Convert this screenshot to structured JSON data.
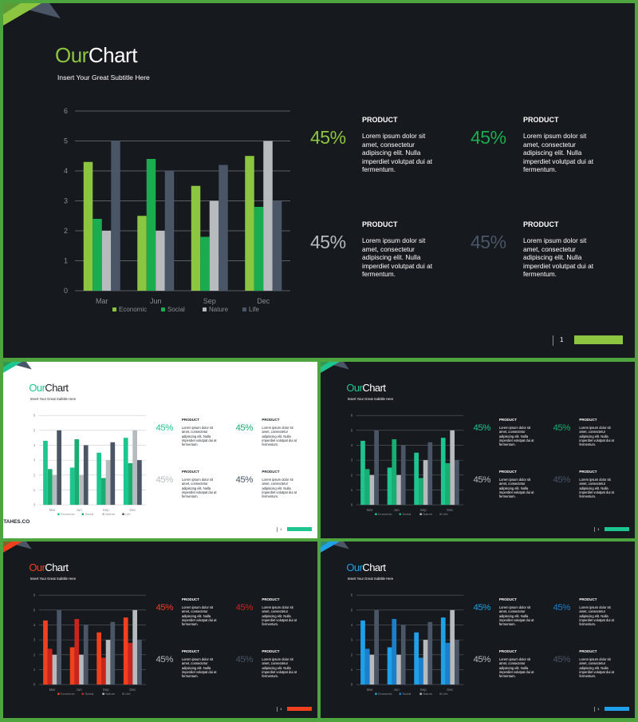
{
  "slide_text": {
    "title_part1": "Our",
    "title_part2": "Chart",
    "subtitle": "Insert Your Great Subtitle Here",
    "product_title": "PRODUCT",
    "product_description": "Lorem ipsum dolor sit amet, consectetur adipiscing elit. Nulla imperdiet volutpat dui at fermentum.",
    "percent_label": "45%",
    "page_number": "1"
  },
  "brand_label": "TAHES.CO",
  "chart_data": {
    "type": "bar",
    "categories": [
      "Mar",
      "Jun",
      "Sep",
      "Dec"
    ],
    "series": [
      {
        "name": "Economic",
        "values": [
          4.3,
          2.5,
          3.5,
          4.5
        ]
      },
      {
        "name": "Social",
        "values": [
          2.4,
          4.4,
          1.8,
          2.8
        ]
      },
      {
        "name": "Nature",
        "values": [
          2.0,
          2.0,
          3.0,
          5.0
        ]
      },
      {
        "name": "Life",
        "values": [
          5.0,
          4.0,
          4.2,
          3.0
        ]
      }
    ],
    "ylim": [
      0,
      6
    ],
    "yticks": [
      0,
      1,
      2,
      3,
      4,
      5,
      6
    ],
    "grid": true,
    "legend": "bottom"
  },
  "slides": [
    {
      "variant": "dark-green",
      "background": "#16191d",
      "accent": "#8cc540",
      "series_colors": [
        "#8cc540",
        "#19ad4f",
        "#b7bbbe",
        "#4a5566"
      ],
      "percent_colors": [
        "#8cc540",
        "#19ad4f",
        "#b7bbbe",
        "#4a5566"
      ],
      "text_color": "#ffffff",
      "axis_color": "#8a8f95",
      "grid_color": "#5a5f66",
      "show_brand": false
    },
    {
      "variant": "light-teal",
      "background": "#ffffff",
      "accent": "#1dc68e",
      "series_colors": [
        "#1dc68e",
        "#19ad72",
        "#b7bbbe",
        "#4a5566"
      ],
      "percent_colors": [
        "#1dc68e",
        "#19ad72",
        "#b7bbbe",
        "#4a5566"
      ],
      "text_color": "#1f2328",
      "axis_color": "#8a8f95",
      "grid_color": "#c9ccd0",
      "show_brand": true
    },
    {
      "variant": "dark-teal",
      "background": "#16191d",
      "accent": "#1dc68e",
      "series_colors": [
        "#1dc68e",
        "#19ad72",
        "#b7bbbe",
        "#4a5566"
      ],
      "percent_colors": [
        "#1dc68e",
        "#19ad72",
        "#b7bbbe",
        "#4a5566"
      ],
      "text_color": "#ffffff",
      "axis_color": "#8a8f95",
      "grid_color": "#5a5f66",
      "show_brand": false
    },
    {
      "variant": "dark-red",
      "background": "#16191d",
      "accent": "#f0401e",
      "series_colors": [
        "#f0401e",
        "#c8261c",
        "#b7bbbe",
        "#4a5566"
      ],
      "percent_colors": [
        "#f0401e",
        "#c8261c",
        "#b7bbbe",
        "#4a5566"
      ],
      "text_color": "#ffffff",
      "axis_color": "#8a8f95",
      "grid_color": "#5a5f66",
      "show_brand": false
    },
    {
      "variant": "dark-blue",
      "background": "#16191d",
      "accent": "#1ea1e8",
      "series_colors": [
        "#1ea1e8",
        "#1c7fcc",
        "#b7bbbe",
        "#4a5566"
      ],
      "percent_colors": [
        "#1ea1e8",
        "#1c7fcc",
        "#b7bbbe",
        "#4a5566"
      ],
      "text_color": "#ffffff",
      "axis_color": "#8a8f95",
      "grid_color": "#5a5f66",
      "show_brand": false
    }
  ]
}
